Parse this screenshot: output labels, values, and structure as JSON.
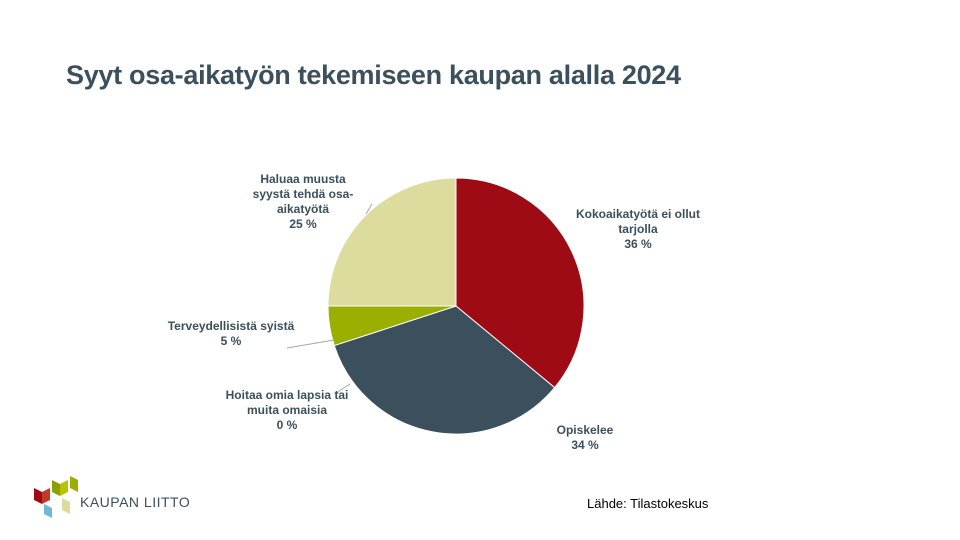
{
  "title": "Syyt osa-aikatyön tekemiseen kaupan alalla 2024",
  "source": "Lähde: Tilastokeskus",
  "logo": {
    "text": "KAUPAN LIITTO"
  },
  "chart_data": {
    "type": "pie",
    "title": "Syyt osa-aikatyön tekemiseen kaupan alalla 2024",
    "legend": "none",
    "slices": [
      {
        "label_lines": [
          "Kokoaikatyötä ei ollut",
          "tarjolla"
        ],
        "value_label": "36 %",
        "value": 36,
        "color": "#9e0b14"
      },
      {
        "label_lines": [
          "Opiskelee"
        ],
        "value_label": "34 %",
        "value": 34,
        "color": "#3b4f5c"
      },
      {
        "label_lines": [
          "Hoitaa omia lapsia tai",
          "muita omaisia"
        ],
        "value_label": "0 %",
        "value": 0,
        "color": "#7f7f7f"
      },
      {
        "label_lines": [
          "Terveydellisistä syistä"
        ],
        "value_label": "5 %",
        "value": 5,
        "color": "#9aaf00"
      },
      {
        "label_lines": [
          "Haluaa muusta",
          "syystä tehdä osa-",
          "aikatyötä"
        ],
        "value_label": "25 %",
        "value": 25,
        "color": "#dddc9f"
      }
    ]
  }
}
